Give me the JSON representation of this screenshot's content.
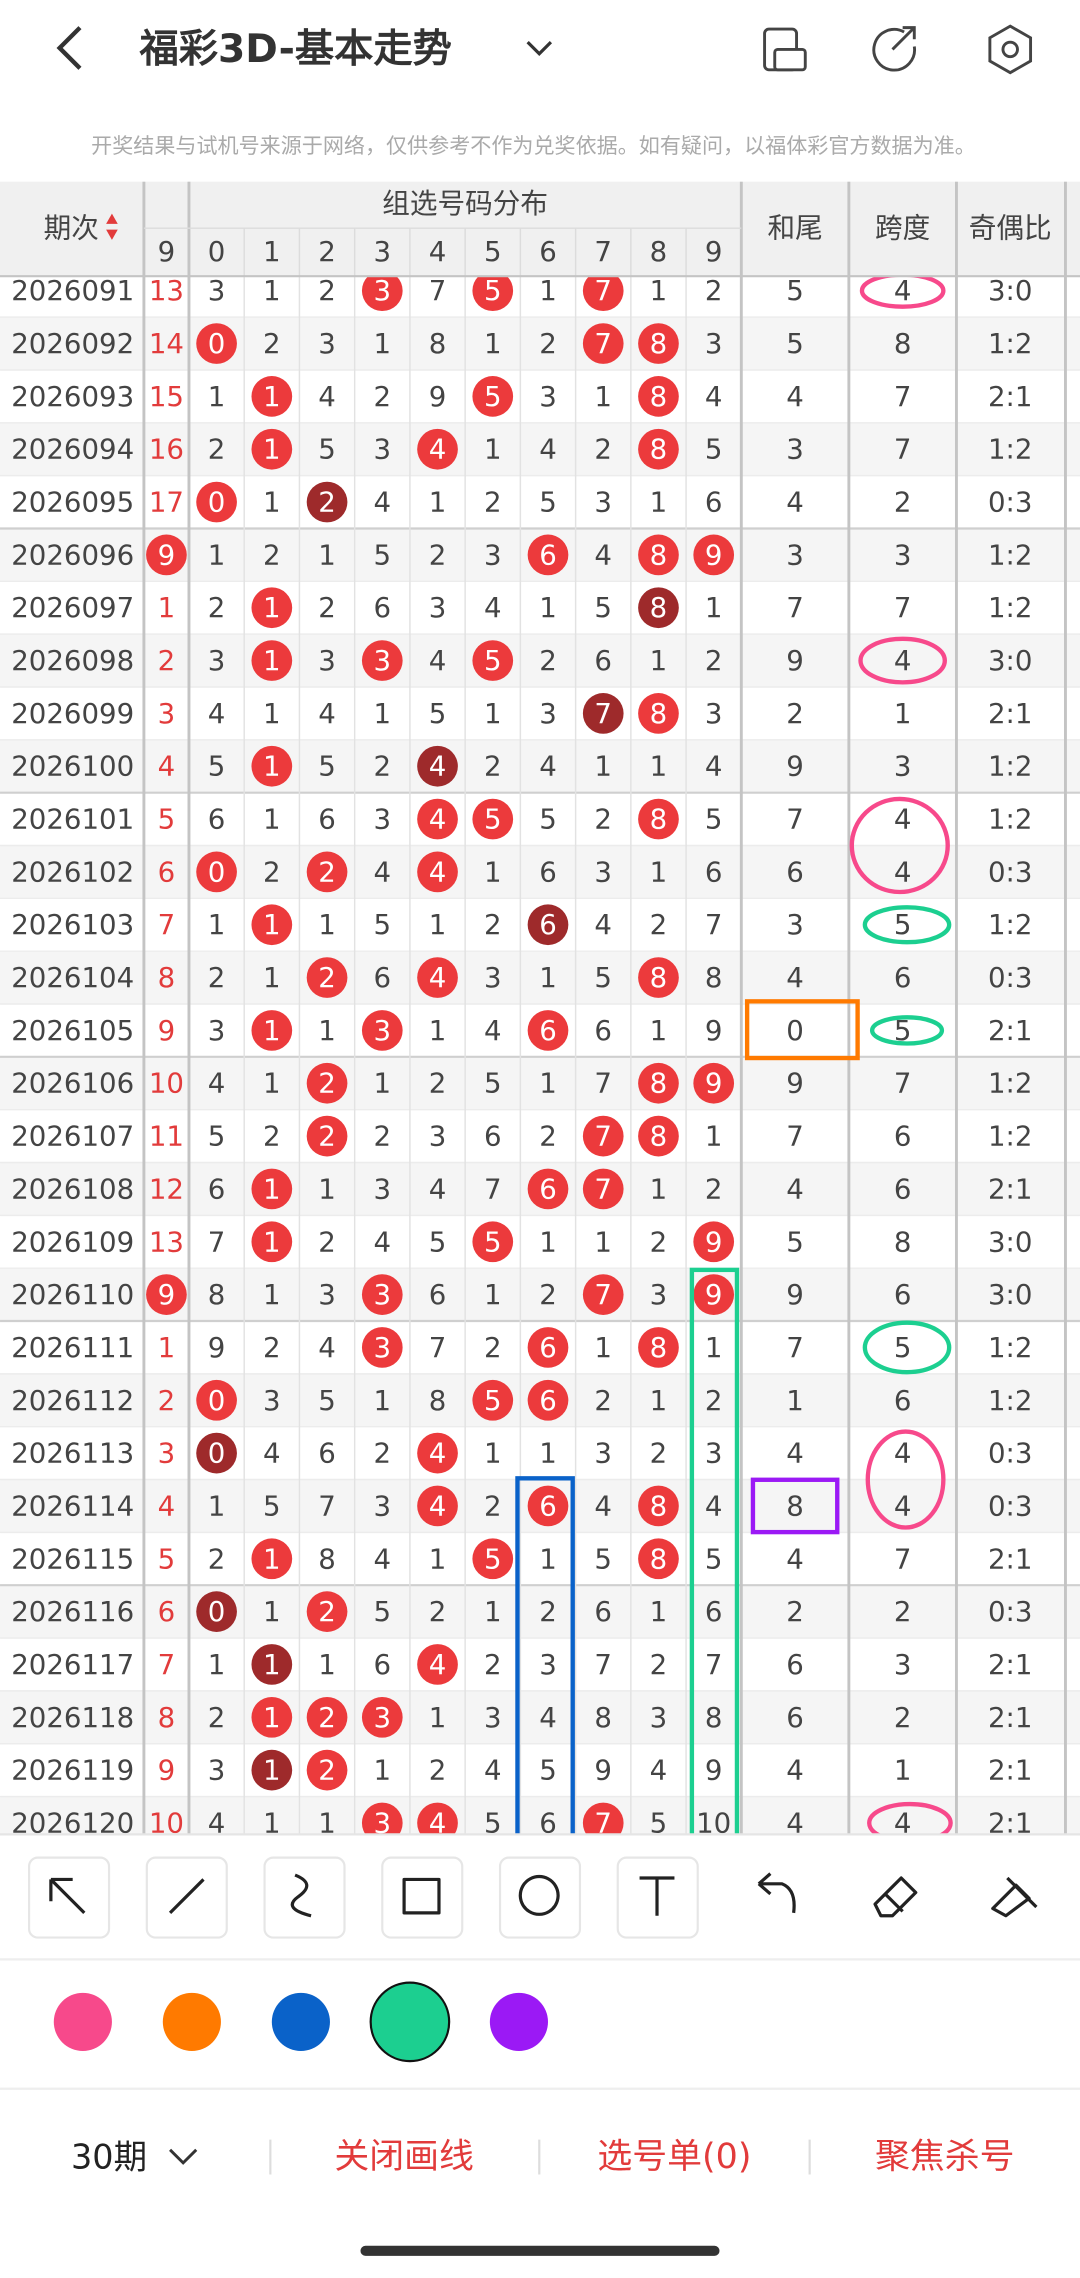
{
  "header": {
    "title": "福彩3D-基本走势",
    "notice": "开奖结果与试机号来源于网络，仅供参考不作为兑奖依据。如有疑问，以福体彩官方数据为准。"
  },
  "table": {
    "columns": {
      "period": "期次",
      "group": "组选号码分布",
      "prev_digit": "9",
      "digits": [
        "0",
        "1",
        "2",
        "3",
        "4",
        "5",
        "6",
        "7",
        "8",
        "9"
      ],
      "sum_tail": "和尾",
      "span": "跨度",
      "parity": "奇偶比"
    },
    "rows": [
      {
        "period": "2026091",
        "prev": "13",
        "cells": [
          "3",
          "1",
          "2",
          {
            "text": "3",
            "ball": "#ec3a3c"
          },
          "7",
          {
            "text": "5",
            "ball": "#ec3a3c"
          },
          "1",
          {
            "text": "7",
            "ball": "#ec3a3c"
          },
          "1",
          "2"
        ],
        "sum_tail": "5",
        "span": "4",
        "parity": "3:0"
      },
      {
        "period": "2026092",
        "prev": "14",
        "cells": [
          {
            "text": "0",
            "ball": "#ec3a3c"
          },
          "2",
          "3",
          "1",
          "8",
          "1",
          "2",
          {
            "text": "7",
            "ball": "#ec3a3c"
          },
          {
            "text": "8",
            "ball": "#ec3a3c"
          },
          "3"
        ],
        "sum_tail": "5",
        "span": "8",
        "parity": "1:2"
      },
      {
        "period": "2026093",
        "prev": "15",
        "cells": [
          "1",
          {
            "text": "1",
            "ball": "#ec3a3c"
          },
          "4",
          "2",
          "9",
          {
            "text": "5",
            "ball": "#ec3a3c"
          },
          "3",
          "1",
          {
            "text": "8",
            "ball": "#ec3a3c"
          },
          "4"
        ],
        "sum_tail": "4",
        "span": "7",
        "parity": "2:1"
      },
      {
        "period": "2026094",
        "prev": "16",
        "cells": [
          "2",
          {
            "text": "1",
            "ball": "#ec3a3c"
          },
          "5",
          "3",
          {
            "text": "4",
            "ball": "#ec3a3c"
          },
          "1",
          "4",
          "2",
          {
            "text": "8",
            "ball": "#ec3a3c"
          },
          "5"
        ],
        "sum_tail": "3",
        "span": "7",
        "parity": "1:2"
      },
      {
        "period": "2026095",
        "prev": "17",
        "cells": [
          {
            "text": "0",
            "ball": "#ec3a3c"
          },
          "1",
          {
            "text": "2",
            "ball": "#9e2a2b"
          },
          "4",
          "1",
          "2",
          "5",
          "3",
          "1",
          "6"
        ],
        "sum_tail": "4",
        "span": "2",
        "parity": "0:3"
      },
      {
        "period": "2026096",
        "prev": {
          "text": "9",
          "ball": "#ec3a3c"
        },
        "cells": [
          "1",
          "2",
          "1",
          "5",
          "2",
          "3",
          {
            "text": "6",
            "ball": "#ec3a3c"
          },
          "4",
          {
            "text": "8",
            "ball": "#ec3a3c"
          },
          {
            "text": "9",
            "ball": "#ec3a3c"
          }
        ],
        "sum_tail": "3",
        "span": "3",
        "parity": "1:2"
      },
      {
        "period": "2026097",
        "prev": "1",
        "cells": [
          "2",
          {
            "text": "1",
            "ball": "#ec3a3c"
          },
          "2",
          "6",
          "3",
          "4",
          "1",
          "5",
          {
            "text": "8",
            "ball": "#9e2a2b"
          },
          "1"
        ],
        "sum_tail": "7",
        "span": "7",
        "parity": "1:2"
      },
      {
        "period": "2026098",
        "prev": "2",
        "cells": [
          "3",
          {
            "text": "1",
            "ball": "#ec3a3c"
          },
          "3",
          {
            "text": "3",
            "ball": "#ec3a3c"
          },
          "4",
          {
            "text": "5",
            "ball": "#ec3a3c"
          },
          "2",
          "6",
          "1",
          "2"
        ],
        "sum_tail": "9",
        "span": "4",
        "parity": "3:0"
      },
      {
        "period": "2026099",
        "prev": "3",
        "cells": [
          "4",
          "1",
          "4",
          "1",
          "5",
          "1",
          "3",
          {
            "text": "7",
            "ball": "#9e2a2b"
          },
          {
            "text": "8",
            "ball": "#ec3a3c"
          },
          "3"
        ],
        "sum_tail": "2",
        "span": "1",
        "parity": "2:1"
      },
      {
        "period": "2026100",
        "prev": "4",
        "cells": [
          "5",
          {
            "text": "1",
            "ball": "#ec3a3c"
          },
          "5",
          "2",
          {
            "text": "4",
            "ball": "#9e2a2b"
          },
          "2",
          "4",
          "1",
          "1",
          "4"
        ],
        "sum_tail": "9",
        "span": "3",
        "parity": "1:2"
      },
      {
        "period": "2026101",
        "prev": "5",
        "cells": [
          "6",
          "1",
          "6",
          "3",
          {
            "text": "4",
            "ball": "#ec3a3c"
          },
          {
            "text": "5",
            "ball": "#ec3a3c"
          },
          "5",
          "2",
          {
            "text": "8",
            "ball": "#ec3a3c"
          },
          "5"
        ],
        "sum_tail": "7",
        "span": "4",
        "parity": "1:2"
      },
      {
        "period": "2026102",
        "prev": "6",
        "cells": [
          {
            "text": "0",
            "ball": "#ec3a3c"
          },
          "2",
          {
            "text": "2",
            "ball": "#ec3a3c"
          },
          "4",
          {
            "text": "4",
            "ball": "#ec3a3c"
          },
          "1",
          "6",
          "3",
          "1",
          "6"
        ],
        "sum_tail": "6",
        "span": "4",
        "parity": "0:3"
      },
      {
        "period": "2026103",
        "prev": "7",
        "cells": [
          "1",
          {
            "text": "1",
            "ball": "#ec3a3c"
          },
          "1",
          "5",
          "1",
          "2",
          {
            "text": "6",
            "ball": "#9e2a2b"
          },
          "4",
          "2",
          "7"
        ],
        "sum_tail": "3",
        "span": "5",
        "parity": "1:2"
      },
      {
        "period": "2026104",
        "prev": "8",
        "cells": [
          "2",
          "1",
          {
            "text": "2",
            "ball": "#ec3a3c"
          },
          "6",
          {
            "text": "4",
            "ball": "#ec3a3c"
          },
          "3",
          "1",
          "5",
          {
            "text": "8",
            "ball": "#ec3a3c"
          },
          "8"
        ],
        "sum_tail": "4",
        "span": "6",
        "parity": "0:3"
      },
      {
        "period": "2026105",
        "prev": "9",
        "cells": [
          "3",
          {
            "text": "1",
            "ball": "#ec3a3c"
          },
          "1",
          {
            "text": "3",
            "ball": "#ec3a3c"
          },
          "1",
          "4",
          {
            "text": "6",
            "ball": "#ec3a3c"
          },
          "6",
          "1",
          "9"
        ],
        "sum_tail": "0",
        "span": "5",
        "parity": "2:1"
      },
      {
        "period": "2026106",
        "prev": "10",
        "cells": [
          "4",
          "1",
          {
            "text": "2",
            "ball": "#ec3a3c"
          },
          "1",
          "2",
          "5",
          "1",
          "7",
          {
            "text": "8",
            "ball": "#ec3a3c"
          },
          {
            "text": "9",
            "ball": "#ec3a3c"
          }
        ],
        "sum_tail": "9",
        "span": "7",
        "parity": "1:2"
      },
      {
        "period": "2026107",
        "prev": "11",
        "cells": [
          "5",
          "2",
          {
            "text": "2",
            "ball": "#ec3a3c"
          },
          "2",
          "3",
          "6",
          "2",
          {
            "text": "7",
            "ball": "#ec3a3c"
          },
          {
            "text": "8",
            "ball": "#ec3a3c"
          },
          "1"
        ],
        "sum_tail": "7",
        "span": "6",
        "parity": "1:2"
      },
      {
        "period": "2026108",
        "prev": "12",
        "cells": [
          "6",
          {
            "text": "1",
            "ball": "#ec3a3c"
          },
          "1",
          "3",
          "4",
          "7",
          {
            "text": "6",
            "ball": "#ec3a3c"
          },
          {
            "text": "7",
            "ball": "#ec3a3c"
          },
          "1",
          "2"
        ],
        "sum_tail": "4",
        "span": "6",
        "parity": "2:1"
      },
      {
        "period": "2026109",
        "prev": "13",
        "cells": [
          "7",
          {
            "text": "1",
            "ball": "#ec3a3c"
          },
          "2",
          "4",
          "5",
          {
            "text": "5",
            "ball": "#ec3a3c"
          },
          "1",
          "1",
          "2",
          {
            "text": "9",
            "ball": "#ec3a3c"
          }
        ],
        "sum_tail": "5",
        "span": "8",
        "parity": "3:0"
      },
      {
        "period": "2026110",
        "prev": {
          "text": "9",
          "ball": "#ec3a3c"
        },
        "cells": [
          "8",
          "1",
          "3",
          {
            "text": "3",
            "ball": "#ec3a3c"
          },
          "6",
          "1",
          "2",
          {
            "text": "7",
            "ball": "#ec3a3c"
          },
          "3",
          {
            "text": "9",
            "ball": "#ec3a3c"
          }
        ],
        "sum_tail": "9",
        "span": "6",
        "parity": "3:0"
      },
      {
        "period": "2026111",
        "prev": "1",
        "cells": [
          "9",
          "2",
          "4",
          {
            "text": "3",
            "ball": "#ec3a3c"
          },
          "7",
          "2",
          {
            "text": "6",
            "ball": "#ec3a3c"
          },
          "1",
          {
            "text": "8",
            "ball": "#ec3a3c"
          },
          "1"
        ],
        "sum_tail": "7",
        "span": "5",
        "parity": "1:2"
      },
      {
        "period": "2026112",
        "prev": "2",
        "cells": [
          {
            "text": "0",
            "ball": "#ec3a3c"
          },
          "3",
          "5",
          "1",
          "8",
          {
            "text": "5",
            "ball": "#ec3a3c"
          },
          {
            "text": "6",
            "ball": "#ec3a3c"
          },
          "2",
          "1",
          "2"
        ],
        "sum_tail": "1",
        "span": "6",
        "parity": "1:2"
      },
      {
        "period": "2026113",
        "prev": "3",
        "cells": [
          {
            "text": "0",
            "ball": "#9e2a2b"
          },
          "4",
          "6",
          "2",
          {
            "text": "4",
            "ball": "#ec3a3c"
          },
          "1",
          "1",
          "3",
          "2",
          "3"
        ],
        "sum_tail": "4",
        "span": "4",
        "parity": "0:3"
      },
      {
        "period": "2026114",
        "prev": "4",
        "cells": [
          "1",
          "5",
          "7",
          "3",
          {
            "text": "4",
            "ball": "#ec3a3c"
          },
          "2",
          {
            "text": "6",
            "ball": "#ec3a3c"
          },
          "4",
          {
            "text": "8",
            "ball": "#ec3a3c"
          },
          "4"
        ],
        "sum_tail": "8",
        "span": "4",
        "parity": "0:3"
      },
      {
        "period": "2026115",
        "prev": "5",
        "cells": [
          "2",
          {
            "text": "1",
            "ball": "#ec3a3c"
          },
          "8",
          "4",
          "1",
          {
            "text": "5",
            "ball": "#ec3a3c"
          },
          "1",
          "5",
          {
            "text": "8",
            "ball": "#ec3a3c"
          },
          "5"
        ],
        "sum_tail": "4",
        "span": "7",
        "parity": "2:1"
      },
      {
        "period": "2026116",
        "prev": "6",
        "cells": [
          {
            "text": "0",
            "ball": "#9e2a2b"
          },
          "1",
          {
            "text": "2",
            "ball": "#ec3a3c"
          },
          "5",
          "2",
          "1",
          "2",
          "6",
          "1",
          "6"
        ],
        "sum_tail": "2",
        "span": "2",
        "parity": "0:3"
      },
      {
        "period": "2026117",
        "prev": "7",
        "cells": [
          "1",
          {
            "text": "1",
            "ball": "#9e2a2b"
          },
          "1",
          "6",
          {
            "text": "4",
            "ball": "#ec3a3c"
          },
          "2",
          "3",
          "7",
          "2",
          "7"
        ],
        "sum_tail": "6",
        "span": "3",
        "parity": "2:1"
      },
      {
        "period": "2026118",
        "prev": "8",
        "cells": [
          "2",
          {
            "text": "1",
            "ball": "#ec3a3c"
          },
          {
            "text": "2",
            "ball": "#ec3a3c"
          },
          {
            "text": "3",
            "ball": "#ec3a3c"
          },
          "1",
          "3",
          "4",
          "8",
          "3",
          "8"
        ],
        "sum_tail": "6",
        "span": "2",
        "parity": "2:1"
      },
      {
        "period": "2026119",
        "prev": "9",
        "cells": [
          "3",
          {
            "text": "1",
            "ball": "#9e2a2b"
          },
          {
            "text": "2",
            "ball": "#ec3a3c"
          },
          "1",
          "2",
          "4",
          "5",
          "9",
          "4",
          "9"
        ],
        "sum_tail": "4",
        "span": "1",
        "parity": "2:1"
      },
      {
        "period": "2026120",
        "prev": "10",
        "cells": [
          "4",
          "1",
          "1",
          {
            "text": "3",
            "ball": "#ec3a3c"
          },
          {
            "text": "4",
            "ball": "#ec3a3c"
          },
          "5",
          "6",
          {
            "text": "7",
            "ball": "#ec3a3c"
          },
          "5",
          "10"
        ],
        "sum_tail": "4",
        "span": "4",
        "parity": "2:1"
      }
    ]
  },
  "palette": {
    "colors": [
      "#f7498b",
      "#ff7a00",
      "#0a62c9",
      "#1ccf90",
      "#9b19f5"
    ],
    "selected": 3
  },
  "footer": {
    "periods": "30期",
    "close": "关闭画线",
    "pick": "选号单(0)",
    "focus": "聚焦杀号"
  }
}
